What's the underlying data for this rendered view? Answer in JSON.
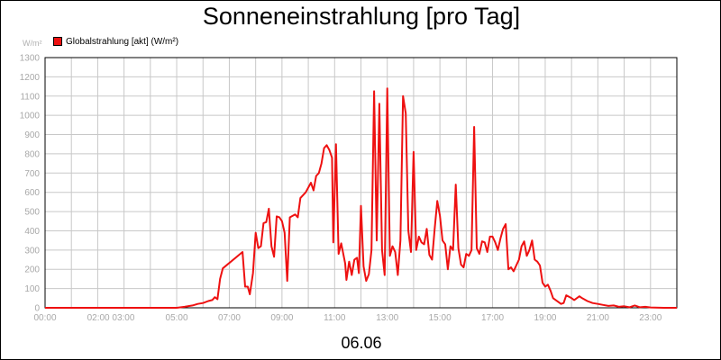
{
  "chart_data": {
    "type": "line",
    "title": "Sonneneinstrahlung [pro Tag]",
    "ylabel": "W/m²",
    "xlabel": "06.06",
    "ylim": [
      0,
      1300
    ],
    "xlim": [
      0,
      24
    ],
    "y_ticks": [
      0,
      100,
      200,
      300,
      400,
      500,
      600,
      700,
      800,
      900,
      1000,
      1100,
      1200,
      1300
    ],
    "x_ticks": [
      {
        "x": 0,
        "label": "00:00"
      },
      {
        "x": 2.5,
        "label": "02:00 03:00"
      },
      {
        "x": 5,
        "label": "05:00"
      },
      {
        "x": 7,
        "label": "07:00"
      },
      {
        "x": 9,
        "label": "09:00"
      },
      {
        "x": 11,
        "label": "11:00"
      },
      {
        "x": 13,
        "label": "13:00"
      },
      {
        "x": 15,
        "label": "15:00"
      },
      {
        "x": 17,
        "label": "17:00"
      },
      {
        "x": 19,
        "label": "19:00"
      },
      {
        "x": 21,
        "label": "21:00"
      },
      {
        "x": 23,
        "label": "23:00"
      }
    ],
    "grid": true,
    "legend_position": "top-left",
    "series": [
      {
        "name": "Globalstrahlung [akt] (W/m²)",
        "color": "#ee1111",
        "points": [
          [
            0,
            0
          ],
          [
            5.0,
            0
          ],
          [
            5.3,
            5
          ],
          [
            5.6,
            12
          ],
          [
            5.8,
            20
          ],
          [
            6.0,
            25
          ],
          [
            6.2,
            35
          ],
          [
            6.35,
            40
          ],
          [
            6.45,
            55
          ],
          [
            6.55,
            45
          ],
          [
            6.65,
            150
          ],
          [
            6.75,
            205
          ],
          [
            7.5,
            290
          ],
          [
            7.6,
            110
          ],
          [
            7.7,
            110
          ],
          [
            7.78,
            70
          ],
          [
            7.9,
            180
          ],
          [
            8.0,
            390
          ],
          [
            8.1,
            310
          ],
          [
            8.2,
            320
          ],
          [
            8.3,
            440
          ],
          [
            8.4,
            445
          ],
          [
            8.5,
            515
          ],
          [
            8.6,
            320
          ],
          [
            8.7,
            265
          ],
          [
            8.8,
            475
          ],
          [
            8.9,
            470
          ],
          [
            9.0,
            450
          ],
          [
            9.1,
            390
          ],
          [
            9.2,
            140
          ],
          [
            9.3,
            470
          ],
          [
            9.5,
            485
          ],
          [
            9.6,
            470
          ],
          [
            9.7,
            570
          ],
          [
            9.9,
            600
          ],
          [
            10.1,
            650
          ],
          [
            10.2,
            610
          ],
          [
            10.3,
            685
          ],
          [
            10.4,
            700
          ],
          [
            10.5,
            750
          ],
          [
            10.6,
            830
          ],
          [
            10.7,
            845
          ],
          [
            10.8,
            820
          ],
          [
            10.9,
            780
          ],
          [
            10.95,
            340
          ],
          [
            11.05,
            850
          ],
          [
            11.15,
            280
          ],
          [
            11.25,
            335
          ],
          [
            11.4,
            230
          ],
          [
            11.45,
            145
          ],
          [
            11.55,
            240
          ],
          [
            11.65,
            170
          ],
          [
            11.75,
            250
          ],
          [
            11.85,
            260
          ],
          [
            11.92,
            180
          ],
          [
            12.0,
            530
          ],
          [
            12.1,
            215
          ],
          [
            12.2,
            140
          ],
          [
            12.3,
            175
          ],
          [
            12.4,
            300
          ],
          [
            12.5,
            1125
          ],
          [
            12.6,
            350
          ],
          [
            12.7,
            1060
          ],
          [
            12.8,
            300
          ],
          [
            12.9,
            170
          ],
          [
            13.0,
            1140
          ],
          [
            13.1,
            270
          ],
          [
            13.2,
            320
          ],
          [
            13.3,
            290
          ],
          [
            13.4,
            170
          ],
          [
            13.5,
            350
          ],
          [
            13.6,
            1100
          ],
          [
            13.7,
            1010
          ],
          [
            13.8,
            400
          ],
          [
            13.9,
            290
          ],
          [
            14.0,
            810
          ],
          [
            14.1,
            300
          ],
          [
            14.2,
            370
          ],
          [
            14.3,
            340
          ],
          [
            14.4,
            330
          ],
          [
            14.5,
            410
          ],
          [
            14.6,
            275
          ],
          [
            14.7,
            250
          ],
          [
            14.8,
            410
          ],
          [
            14.9,
            555
          ],
          [
            15.0,
            480
          ],
          [
            15.1,
            350
          ],
          [
            15.2,
            330
          ],
          [
            15.3,
            200
          ],
          [
            15.4,
            320
          ],
          [
            15.5,
            300
          ],
          [
            15.6,
            640
          ],
          [
            15.7,
            310
          ],
          [
            15.8,
            225
          ],
          [
            15.9,
            210
          ],
          [
            16.0,
            280
          ],
          [
            16.1,
            270
          ],
          [
            16.2,
            300
          ],
          [
            16.3,
            940
          ],
          [
            16.4,
            310
          ],
          [
            16.5,
            280
          ],
          [
            16.6,
            345
          ],
          [
            16.7,
            340
          ],
          [
            16.8,
            290
          ],
          [
            16.9,
            370
          ],
          [
            17.0,
            370
          ],
          [
            17.1,
            340
          ],
          [
            17.2,
            300
          ],
          [
            17.3,
            360
          ],
          [
            17.4,
            410
          ],
          [
            17.5,
            435
          ],
          [
            17.6,
            200
          ],
          [
            17.7,
            210
          ],
          [
            17.8,
            190
          ],
          [
            17.9,
            220
          ],
          [
            18.0,
            250
          ],
          [
            18.1,
            320
          ],
          [
            18.2,
            345
          ],
          [
            18.3,
            270
          ],
          [
            18.4,
            300
          ],
          [
            18.5,
            350
          ],
          [
            18.6,
            250
          ],
          [
            18.7,
            240
          ],
          [
            18.8,
            220
          ],
          [
            18.9,
            130
          ],
          [
            19.0,
            110
          ],
          [
            19.1,
            120
          ],
          [
            19.2,
            90
          ],
          [
            19.3,
            50
          ],
          [
            19.5,
            30
          ],
          [
            19.6,
            20
          ],
          [
            19.7,
            25
          ],
          [
            19.8,
            65
          ],
          [
            20.0,
            50
          ],
          [
            20.1,
            40
          ],
          [
            20.3,
            60
          ],
          [
            20.4,
            50
          ],
          [
            20.6,
            35
          ],
          [
            20.8,
            25
          ],
          [
            21.0,
            20
          ],
          [
            21.2,
            15
          ],
          [
            21.4,
            10
          ],
          [
            21.6,
            12
          ],
          [
            21.8,
            5
          ],
          [
            22.0,
            8
          ],
          [
            22.2,
            3
          ],
          [
            22.4,
            12
          ],
          [
            22.6,
            3
          ],
          [
            22.8,
            5
          ],
          [
            23.0,
            2
          ],
          [
            23.5,
            0
          ],
          [
            24.0,
            0
          ]
        ]
      }
    ]
  }
}
